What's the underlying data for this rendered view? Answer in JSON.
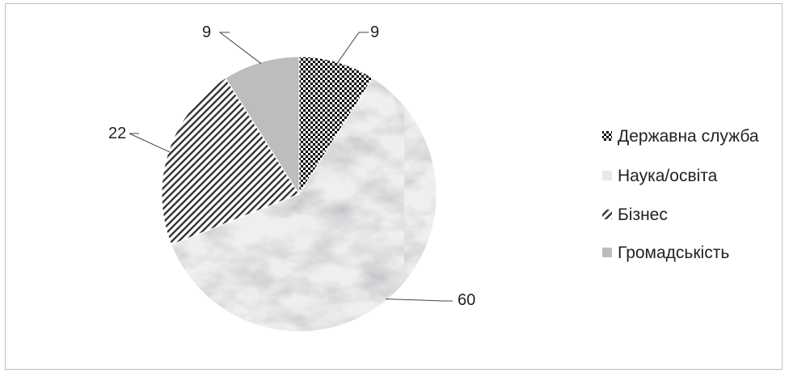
{
  "chart_data": {
    "type": "pie",
    "categories": [
      "Державна служба",
      "Наука/освіта",
      "Бізнес",
      "Громадськість"
    ],
    "values": [
      9,
      60,
      22,
      9
    ],
    "data_labels": [
      "9",
      "60",
      "22",
      "9"
    ],
    "start_angle_deg": 0,
    "direction": "clockwise",
    "legend": "right",
    "title": "",
    "slice_fills": [
      "checker-black",
      "marble-light",
      "diagonal-hatch",
      "#bdbdbd"
    ]
  }
}
